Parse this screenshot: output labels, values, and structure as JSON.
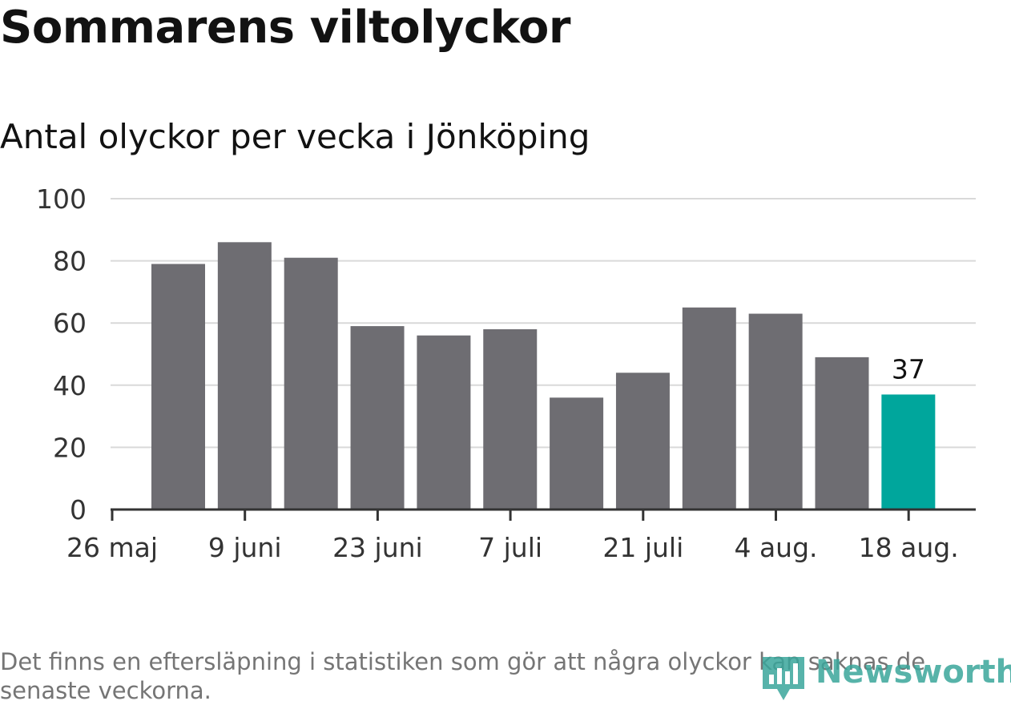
{
  "title": "Sommarens viltolyckor",
  "subtitle": "Antal olyckor per vecka i Jönköping",
  "footnote": "Det finns en eftersläpning i statistiken som gör att några olyckor kan saknas de senaste veckorna.",
  "logo": {
    "text": "Newsworthy",
    "icon": "bar-chart-speech-icon"
  },
  "colors": {
    "bar": "#6e6d72",
    "highlight": "#00a69c",
    "grid": "#d9d9d9",
    "axis": "#333333",
    "text": "#333333"
  },
  "chart_data": {
    "type": "bar",
    "x": [
      "2024-06-03",
      "2024-06-10",
      "2024-06-17",
      "2024-06-24",
      "2024-07-01",
      "2024-07-08",
      "2024-07-15",
      "2024-07-22",
      "2024-07-29",
      "2024-08-05",
      "2024-08-12",
      "2024-08-19"
    ],
    "values": [
      79,
      86,
      81,
      59,
      56,
      58,
      36,
      44,
      65,
      63,
      49,
      37
    ],
    "highlight_index": 11,
    "highlight_label": "37",
    "x_ticks": [
      "26 maj",
      "9 juni",
      "23 juni",
      "7 juli",
      "21 juli",
      "4 aug.",
      "18 aug."
    ],
    "y_ticks": [
      "0",
      "20",
      "40",
      "60",
      "80",
      "100"
    ],
    "ylim": [
      0,
      100
    ],
    "grid": true
  }
}
